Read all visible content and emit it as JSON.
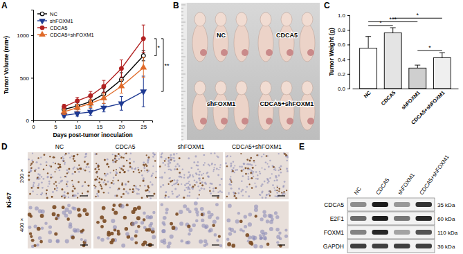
{
  "chart_data": [
    {
      "type": "line",
      "title": "A",
      "x_label": "Days post-tumor inoculation",
      "y_label": "Tumor Volume (mm³)",
      "x": [
        7,
        10,
        13,
        16,
        20,
        25
      ],
      "xlim": [
        0,
        27
      ],
      "xticks": [
        0,
        5,
        10,
        15,
        20,
        25
      ],
      "ylim": [
        0,
        1300
      ],
      "yticks": [
        0,
        500,
        1000
      ],
      "legend": "upper left",
      "series": [
        {
          "name": "NC",
          "color": "#000000",
          "marker": "circle-open",
          "values": [
            130,
            170,
            220,
            310,
            480,
            760
          ],
          "errors": [
            30,
            40,
            50,
            60,
            80,
            60
          ]
        },
        {
          "name": "shFOXM1",
          "color": "#1f3a93",
          "marker": "triangle-down",
          "values": [
            60,
            80,
            100,
            150,
            200,
            340
          ],
          "errors": [
            20,
            30,
            40,
            50,
            80,
            180
          ]
        },
        {
          "name": "CDCA5",
          "color": "#b22222",
          "marker": "circle",
          "values": [
            160,
            230,
            290,
            400,
            610,
            960
          ],
          "errors": [
            30,
            40,
            50,
            70,
            100,
            160
          ]
        },
        {
          "name": "CDCA5+shFOXM1",
          "color": "#e06b2a",
          "marker": "triangle-up",
          "values": [
            100,
            150,
            200,
            260,
            400,
            620
          ],
          "errors": [
            30,
            40,
            50,
            60,
            80,
            120
          ]
        }
      ],
      "annotations": [
        {
          "text": "*",
          "pair": [
            "CDCA5",
            "NC"
          ]
        },
        {
          "text": "**",
          "pair": [
            "CDCA5",
            "shFOXM1"
          ]
        }
      ]
    },
    {
      "type": "bar",
      "title": "C",
      "y_label": "Tumor Weight (g)",
      "categories": [
        "NC",
        "CDCA5",
        "shFOXM1",
        "CDCA5+shFOXM1"
      ],
      "values": [
        0.55,
        0.76,
        0.28,
        0.42
      ],
      "errors": [
        0.16,
        0.07,
        0.04,
        0.07
      ],
      "colors": [
        "#ffffff",
        "#e4e4e4",
        "#cfcfcf",
        "#efefef"
      ],
      "ylim": [
        0,
        1.0
      ],
      "yticks": [
        {
          "value": 0,
          "label": "0.0"
        },
        0.2,
        0.4,
        0.6,
        0.8,
        {
          "value": 1,
          "label": "1.0"
        }
      ],
      "annotations": [
        {
          "text": "*",
          "pair": [
            "NC",
            "CDCA5"
          ]
        },
        {
          "text": "***",
          "pair": [
            "NC",
            "shFOXM1"
          ]
        },
        {
          "text": "*",
          "pair": [
            "CDCA5",
            "CDCA5+shFOXM1"
          ]
        },
        {
          "text": "*",
          "pair": [
            "shFOXM1",
            "CDCA5+shFOXM1"
          ]
        }
      ]
    }
  ],
  "panel_b": {
    "title": "B",
    "groups": [
      "NC",
      "CDCA5",
      "shFOXM1",
      "CDCA5+shFOXM1"
    ]
  },
  "panel_d": {
    "title": "D",
    "stain": "Ki-67",
    "columns": [
      "NC",
      "CDCA5",
      "shFOXM1",
      "CDCA5+shFOXM1"
    ],
    "rows": [
      "200 ×",
      "400 ×"
    ]
  },
  "panel_e": {
    "title": "E",
    "lanes": [
      "NC",
      "CDCA5",
      "shFOXM1",
      "CDCA5+shFOXM1"
    ],
    "proteins": [
      {
        "name": "CDCA5",
        "size": "35 kDa",
        "intensity": [
          0.45,
          0.95,
          0.4,
          0.85
        ]
      },
      {
        "name": "E2F1",
        "size": "60 kDa",
        "intensity": [
          0.6,
          0.95,
          0.55,
          0.9
        ]
      },
      {
        "name": "FOXM1",
        "size": "110 kDa",
        "intensity": [
          0.5,
          0.9,
          0.35,
          0.7
        ]
      },
      {
        "name": "GAPDH",
        "size": "36 kDa",
        "intensity": [
          0.8,
          0.8,
          0.8,
          0.8
        ]
      }
    ]
  }
}
